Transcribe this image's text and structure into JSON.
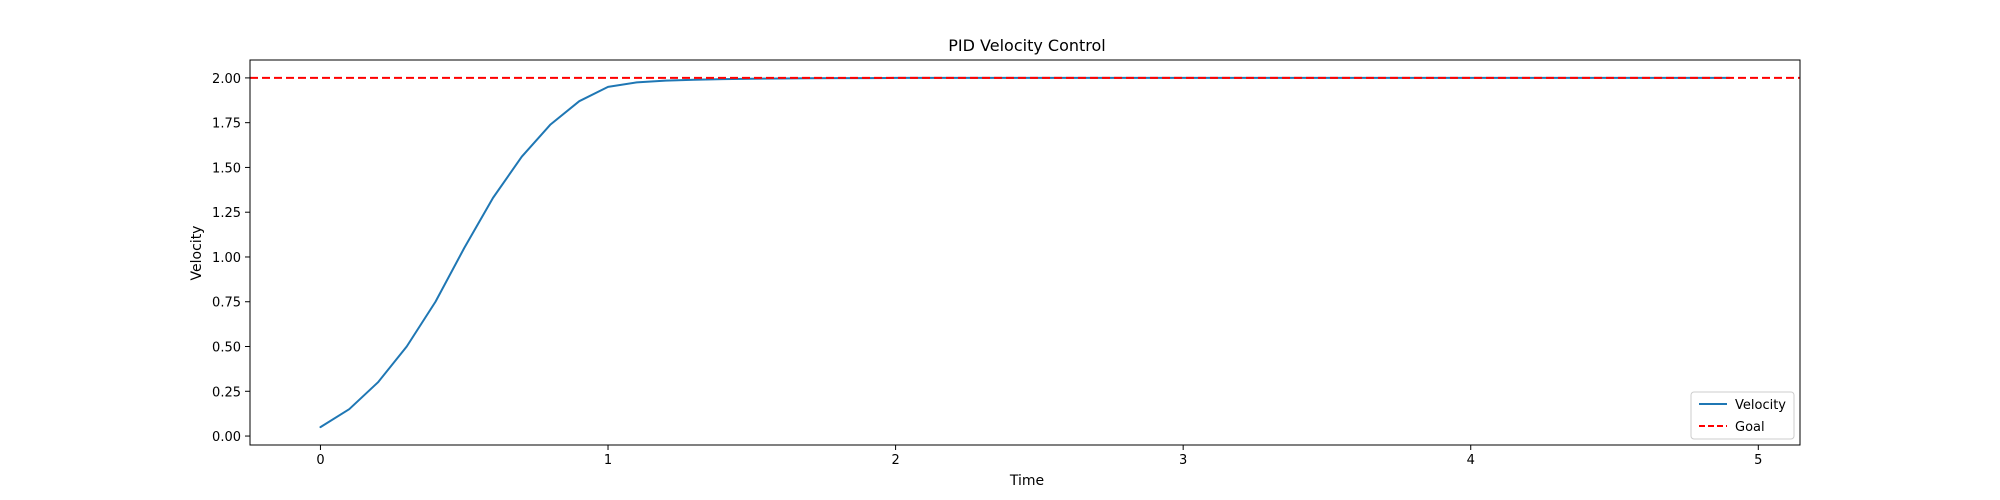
{
  "chart_data": {
    "type": "line",
    "title": "PID Velocity Control",
    "xlabel": "Time",
    "ylabel": "Velocity",
    "xlim": [
      -0.245,
      5.145
    ],
    "ylim": [
      -0.05,
      2.1
    ],
    "xticks": [
      0,
      1,
      2,
      3,
      4,
      5
    ],
    "xtick_labels": [
      "0",
      "1",
      "2",
      "3",
      "4",
      "5"
    ],
    "yticks": [
      0,
      0.25,
      0.5,
      0.75,
      1.0,
      1.25,
      1.5,
      1.75,
      2.0
    ],
    "ytick_labels": [
      "0.00",
      "0.25",
      "0.50",
      "0.75",
      "1.00",
      "1.25",
      "1.50",
      "1.75",
      "2.00"
    ],
    "grid": false,
    "legend_position": "lower-right",
    "series": [
      {
        "name": "Velocity",
        "color": "#1f77b4",
        "style": "solid",
        "x": [
          0,
          0.1,
          0.2,
          0.3,
          0.4,
          0.5,
          0.6,
          0.7,
          0.8,
          0.9,
          1.0,
          1.1,
          1.2,
          1.3,
          1.4,
          1.5,
          1.6,
          1.7,
          1.8,
          1.9,
          2.0,
          2.1,
          2.2,
          2.3,
          2.4,
          2.5,
          2.6,
          2.7,
          2.8,
          2.9,
          3.0,
          3.1,
          3.2,
          3.3,
          3.4,
          3.5,
          3.6,
          3.7,
          3.8,
          3.9,
          4.0,
          4.1,
          4.2,
          4.3,
          4.4,
          4.5,
          4.6,
          4.7,
          4.8,
          4.9
        ],
        "y": [
          0.05,
          0.15,
          0.3,
          0.5,
          0.75,
          1.05,
          1.33,
          1.56,
          1.74,
          1.87,
          1.95,
          1.975,
          1.985,
          1.99,
          1.993,
          1.995,
          1.997,
          1.998,
          1.999,
          1.999,
          2.0,
          2.0,
          2.0,
          2.0,
          2.0,
          2.0,
          2.0,
          2.0,
          2.0,
          2.0,
          2.0,
          2.0,
          2.0,
          2.0,
          2.0,
          2.0,
          2.0,
          2.0,
          2.0,
          2.0,
          2.0,
          2.0,
          2.0,
          2.0,
          2.0,
          2.0,
          2.0,
          2.0,
          2.0,
          2.0
        ]
      },
      {
        "name": "Goal",
        "color": "#ff0000",
        "style": "dashed",
        "type": "hline",
        "y": 2.0
      }
    ]
  }
}
